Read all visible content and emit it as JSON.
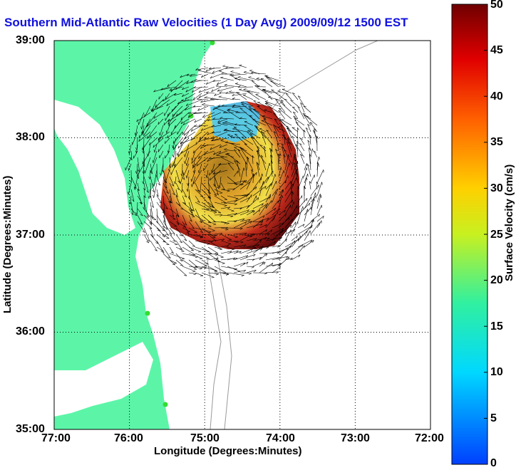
{
  "title": "Southern Mid-Atlantic Raw Velocities (1 Day Avg) 2009/09/12 1500 EST",
  "chart_data": {
    "type": "heatmap",
    "title": "Southern Mid-Atlantic Raw Velocities (1 Day Avg) 2009/09/12 1500 EST",
    "xlabel": "Longitude (Degrees:Minutes)",
    "ylabel": "Latitude (Degrees:Minutes)",
    "x_ticks": [
      "77:00",
      "76:00",
      "75:00",
      "74:00",
      "73:00",
      "72:00"
    ],
    "y_ticks": [
      "39:00",
      "38:00",
      "37:00",
      "36:00",
      "35:00"
    ],
    "xlim": [
      -77,
      -72
    ],
    "ylim": [
      35,
      39
    ],
    "grid": true,
    "colorbar": {
      "label": "Surface Velocity (cm/s)",
      "ticks": [
        "0",
        "5",
        "10",
        "15",
        "20",
        "25",
        "30",
        "35",
        "40",
        "45",
        "50"
      ],
      "range": [
        0,
        50
      ]
    }
  },
  "colors": {
    "land": "#5cf5a8",
    "water": "#ffffff",
    "coast_dots": "#33dd33",
    "bathymetry": "#999999",
    "title": "#1010e0"
  }
}
